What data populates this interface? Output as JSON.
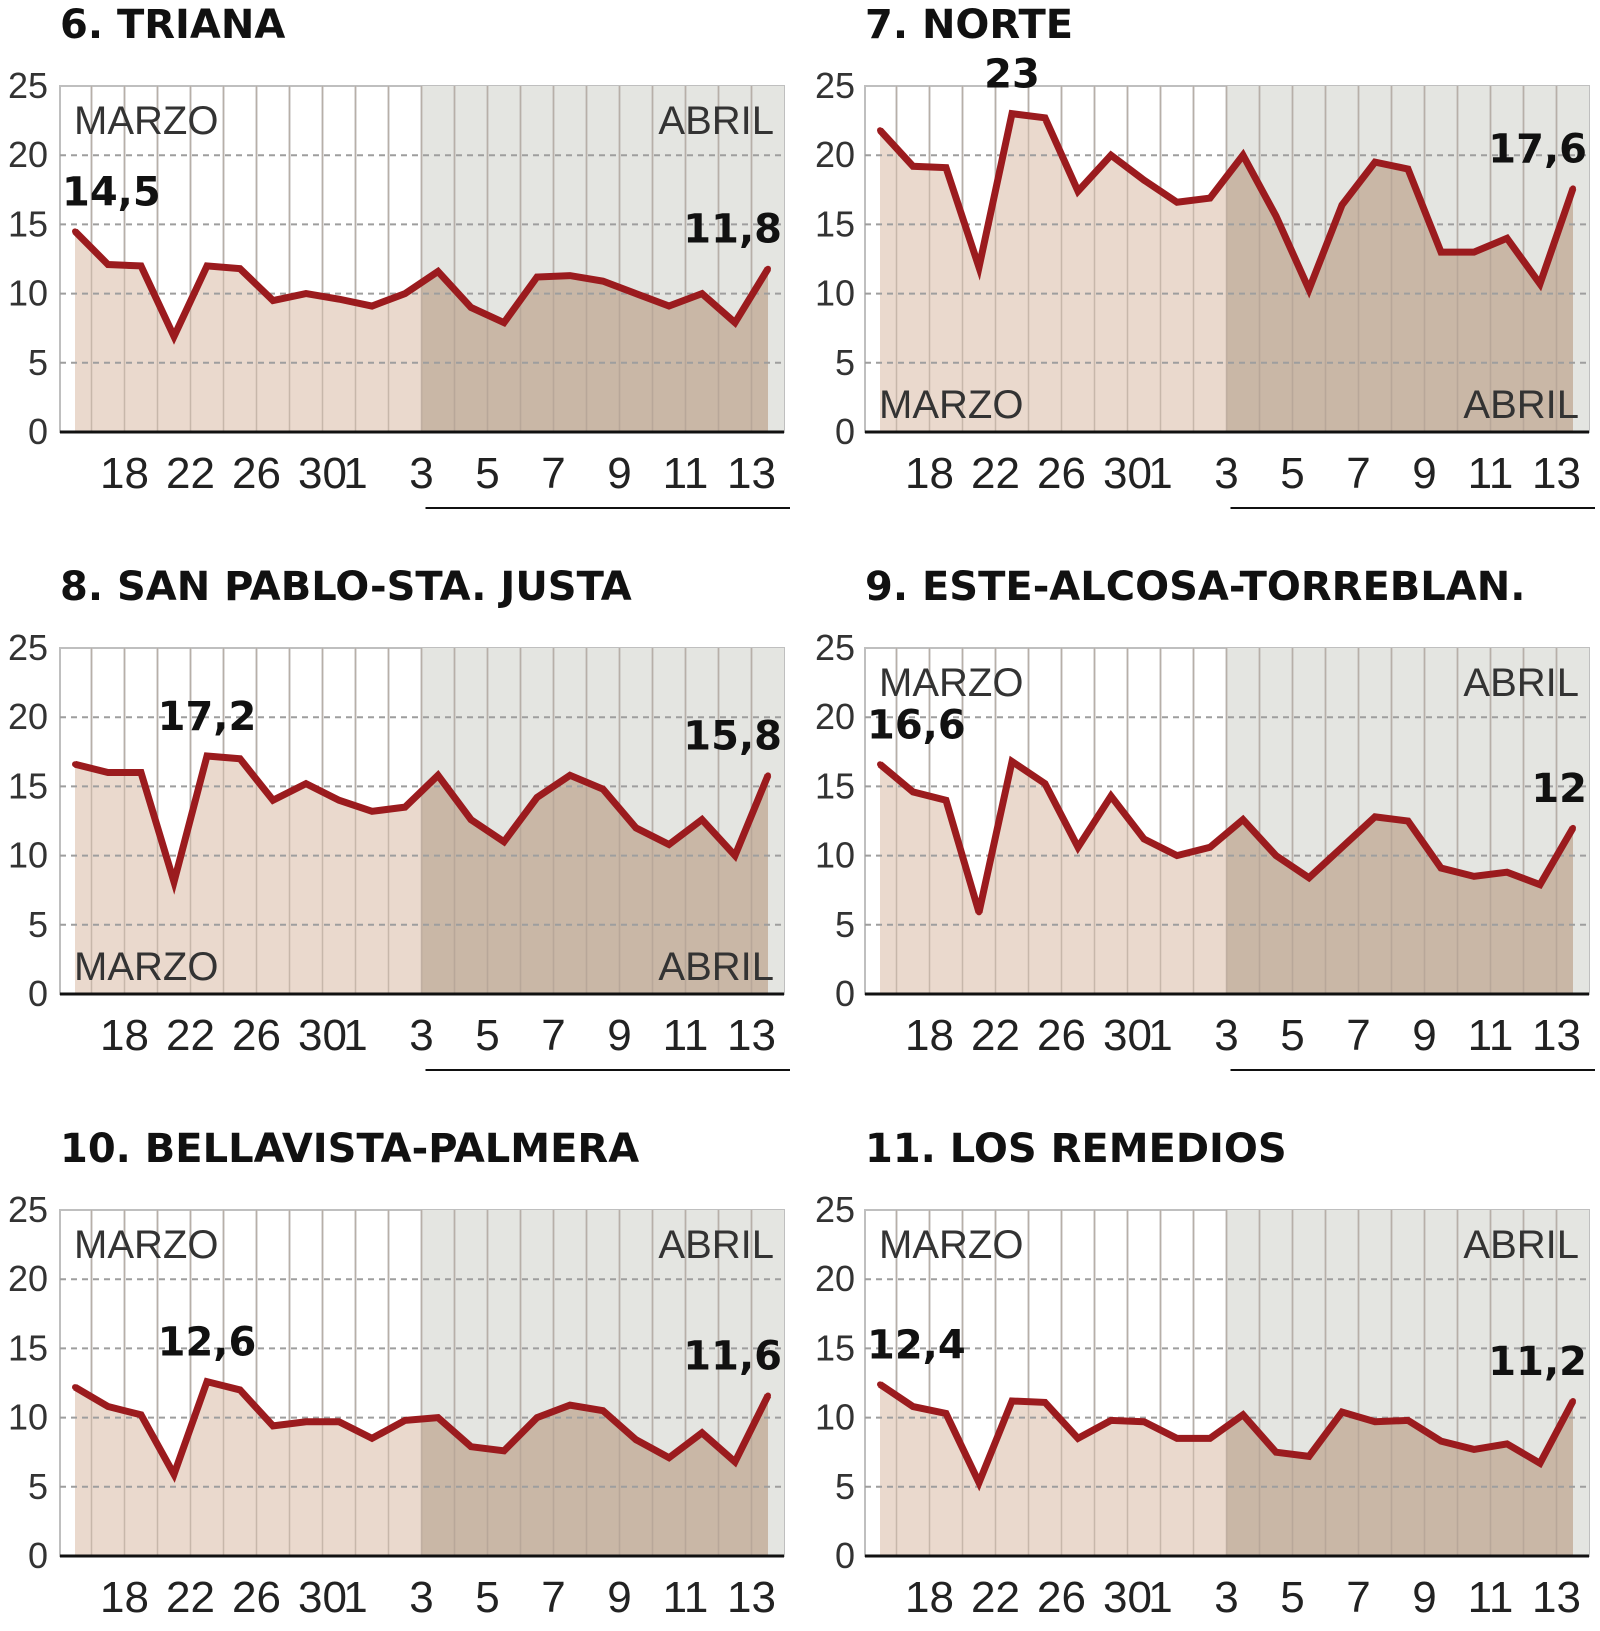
{
  "colors": {
    "line": "#9b1b1e",
    "area_marzo": "#ead9cd",
    "area_abril": "#c9b7a6",
    "bg_abril": "#e4e5e1",
    "grid": "#9e9e9e",
    "axis": "#111111",
    "title": "#111111"
  },
  "chart_data": [
    {
      "type": "area",
      "title": "6. TRIANA",
      "months": [
        "MARZO",
        "ABRIL"
      ],
      "month_label_position": "top",
      "x_tick_labels": [
        "18",
        "22",
        "26",
        "30",
        "1",
        "3",
        "5",
        "7",
        "9",
        "11",
        "13"
      ],
      "y_ticks": [
        "0",
        "5",
        "10",
        "15",
        "20",
        "25"
      ],
      "ylim": [
        0,
        25
      ],
      "march_days": 11,
      "values": [
        14.5,
        12.1,
        12.0,
        6.9,
        12.0,
        11.8,
        9.5,
        10.0,
        9.6,
        9.1,
        10.0,
        11.6,
        9.0,
        7.9,
        11.2,
        11.3,
        10.9,
        10.0,
        9.1,
        10.0,
        7.9,
        11.8
      ],
      "annotations": [
        {
          "index": 0,
          "label": "14,5"
        },
        {
          "index": 21,
          "label": "11,8"
        }
      ]
    },
    {
      "type": "area",
      "title": "7. NORTE",
      "months": [
        "MARZO",
        "ABRIL"
      ],
      "month_label_position": "bottom",
      "x_tick_labels": [
        "18",
        "22",
        "26",
        "30",
        "1",
        "3",
        "5",
        "7",
        "9",
        "11",
        "13"
      ],
      "y_ticks": [
        "0",
        "5",
        "10",
        "15",
        "20",
        "25"
      ],
      "ylim": [
        0,
        25
      ],
      "march_days": 11,
      "values": [
        21.8,
        19.2,
        19.1,
        11.9,
        23.0,
        22.7,
        17.4,
        20.0,
        18.2,
        16.6,
        16.9,
        20.0,
        15.6,
        10.3,
        16.4,
        19.5,
        19.0,
        13.0,
        13.0,
        14.0,
        10.7,
        17.6
      ],
      "annotations": [
        {
          "index": 4,
          "label": "23"
        },
        {
          "index": 21,
          "label": "17,6"
        }
      ]
    },
    {
      "type": "area",
      "title": "8. SAN PABLO-STA. JUSTA",
      "months": [
        "MARZO",
        "ABRIL"
      ],
      "month_label_position": "bottom",
      "x_tick_labels": [
        "18",
        "22",
        "26",
        "30",
        "1",
        "3",
        "5",
        "7",
        "9",
        "11",
        "13"
      ],
      "y_ticks": [
        "0",
        "5",
        "10",
        "15",
        "20",
        "25"
      ],
      "ylim": [
        0,
        25
      ],
      "march_days": 11,
      "values": [
        16.6,
        16.0,
        16.0,
        8.1,
        17.2,
        17.0,
        14.0,
        15.2,
        14.0,
        13.2,
        13.5,
        15.8,
        12.6,
        11.0,
        14.2,
        15.8,
        14.8,
        12.0,
        10.8,
        12.6,
        10.0,
        15.8
      ],
      "annotations": [
        {
          "index": 4,
          "label": "17,2"
        },
        {
          "index": 21,
          "label": "15,8"
        }
      ]
    },
    {
      "type": "area",
      "title": "9. ESTE-ALCOSA-TORREBLAN.",
      "months": [
        "MARZO",
        "ABRIL"
      ],
      "month_label_position": "top",
      "x_tick_labels": [
        "18",
        "22",
        "26",
        "30",
        "1",
        "3",
        "5",
        "7",
        "9",
        "11",
        "13"
      ],
      "y_ticks": [
        "0",
        "5",
        "10",
        "15",
        "20",
        "25"
      ],
      "ylim": [
        0,
        25
      ],
      "march_days": 11,
      "values": [
        16.6,
        14.6,
        14.0,
        5.9,
        16.8,
        15.2,
        10.6,
        14.3,
        11.2,
        10.0,
        10.6,
        12.6,
        10.0,
        8.4,
        10.6,
        12.8,
        12.5,
        9.1,
        8.5,
        8.8,
        7.9,
        12.0
      ],
      "annotations": [
        {
          "index": 0,
          "label": "16,6"
        },
        {
          "index": 21,
          "label": "12"
        }
      ]
    },
    {
      "type": "area",
      "title": "10. BELLAVISTA-PALMERA",
      "months": [
        "MARZO",
        "ABRIL"
      ],
      "month_label_position": "top",
      "x_tick_labels": [
        "18",
        "22",
        "26",
        "30",
        "1",
        "3",
        "5",
        "7",
        "9",
        "11",
        "13"
      ],
      "y_ticks": [
        "0",
        "5",
        "10",
        "15",
        "20",
        "25"
      ],
      "ylim": [
        0,
        25
      ],
      "march_days": 11,
      "values": [
        12.2,
        10.8,
        10.2,
        5.9,
        12.6,
        12.0,
        9.4,
        9.7,
        9.7,
        8.5,
        9.8,
        10.0,
        7.9,
        7.6,
        10.0,
        10.9,
        10.5,
        8.4,
        7.1,
        8.9,
        6.8,
        11.6
      ],
      "annotations": [
        {
          "index": 4,
          "label": "12,6"
        },
        {
          "index": 21,
          "label": "11,6"
        }
      ]
    },
    {
      "type": "area",
      "title": "11. LOS REMEDIOS",
      "months": [
        "MARZO",
        "ABRIL"
      ],
      "month_label_position": "top",
      "x_tick_labels": [
        "18",
        "22",
        "26",
        "30",
        "1",
        "3",
        "5",
        "7",
        "9",
        "11",
        "13"
      ],
      "y_ticks": [
        "0",
        "5",
        "10",
        "15",
        "20",
        "25"
      ],
      "ylim": [
        0,
        25
      ],
      "march_days": 11,
      "values": [
        12.4,
        10.8,
        10.3,
        5.3,
        11.2,
        11.1,
        8.5,
        9.8,
        9.7,
        8.5,
        8.5,
        10.2,
        7.5,
        7.2,
        10.4,
        9.7,
        9.8,
        8.3,
        7.7,
        8.1,
        6.7,
        11.2
      ],
      "annotations": [
        {
          "index": 0,
          "label": "12,4"
        },
        {
          "index": 21,
          "label": "11,2"
        }
      ]
    }
  ]
}
